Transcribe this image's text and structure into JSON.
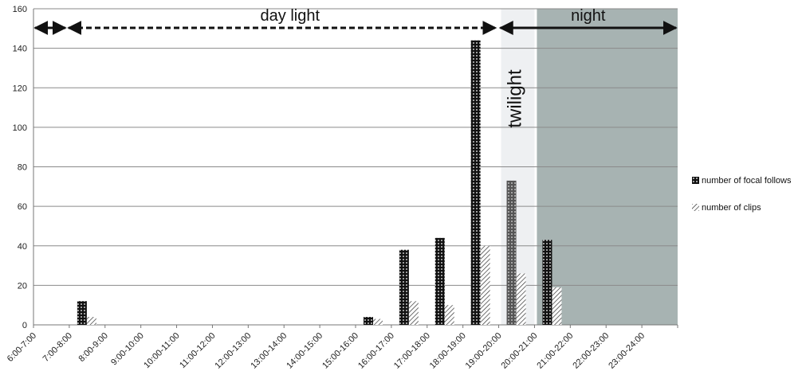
{
  "chart_data": {
    "type": "bar",
    "categories": [
      "6:00-7:00",
      "7:00-8:00",
      "8:00-9:00",
      "9:00-10:00",
      "10:00-11:00",
      "11:00-12:00",
      "12:00-13:00",
      "13:00-14:00",
      "14:00-15:00",
      "15:00-16:00",
      "16:00-17:00",
      "17:00-18:00",
      "18:00-19:00",
      "19:00-20:00",
      "20:00-21:00",
      "21:00-22:00",
      "22:00-23:00",
      "23:00-24:00"
    ],
    "series": [
      {
        "name": "number of focal follows",
        "values": [
          0,
          12,
          0,
          0,
          0,
          0,
          0,
          0,
          0,
          4,
          38,
          44,
          144,
          73,
          43,
          0,
          0,
          0
        ]
      },
      {
        "name": "number of clips",
        "values": [
          0,
          4,
          0,
          0,
          0,
          0,
          0,
          0,
          0,
          3,
          12,
          10,
          40,
          26,
          19,
          0,
          0,
          0
        ]
      }
    ],
    "ylim": [
      0,
      160
    ],
    "yticks": [
      0,
      20,
      40,
      60,
      80,
      100,
      120,
      140,
      160
    ],
    "grid": true,
    "legend_position": "right",
    "annotations": {
      "daylight": "day light",
      "night": "night",
      "twilight": "twilight"
    },
    "bands": [
      {
        "label": "twilight",
        "from_category": "19:00-20:00",
        "to_category": "19:00-20:00",
        "color": "#eef0f2"
      },
      {
        "label": "night",
        "from_category": "20:00-21:00",
        "to_category": "23:00-24:00",
        "color": "#a7b3b2"
      }
    ],
    "title": "",
    "xlabel": "",
    "ylabel": ""
  }
}
